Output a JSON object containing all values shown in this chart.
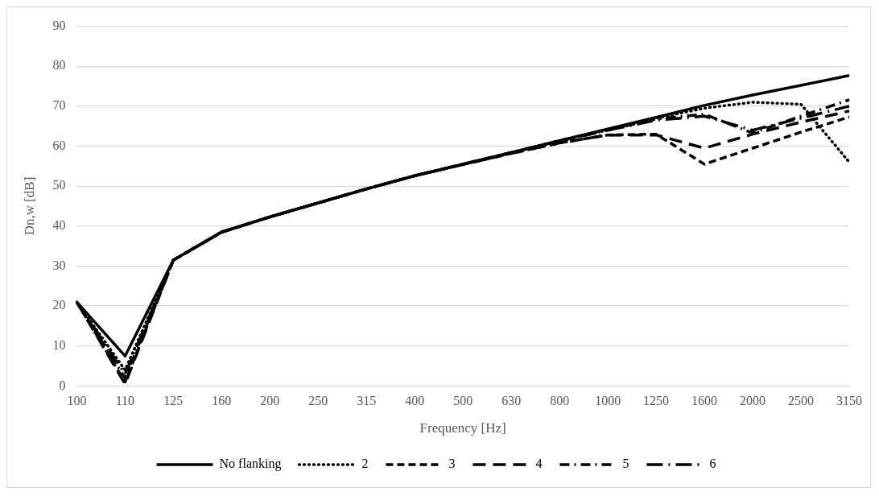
{
  "chart_data": {
    "type": "line",
    "xlabel": "Frequency [Hz]",
    "ylabel": "Dn,w [dB]",
    "categories": [
      "100",
      "110",
      "125",
      "160",
      "200",
      "250",
      "315",
      "400",
      "500",
      "630",
      "800",
      "1000",
      "1250",
      "1600",
      "2000",
      "2500",
      "3150"
    ],
    "ylim": [
      0,
      90
    ],
    "yticks": [
      0,
      10,
      20,
      30,
      40,
      50,
      60,
      70,
      80,
      90
    ],
    "grid": "y",
    "legend": "bottom",
    "marker": "none",
    "series": [
      {
        "name": "No flanking",
        "color": "#000000",
        "line_style": "solid",
        "values": [
          21,
          7.5,
          31.5,
          38.5,
          42.3,
          45.8,
          49.3,
          52.6,
          55.5,
          58.4,
          61.4,
          64.3,
          67.2,
          70.2,
          72.8,
          75.2,
          77.7
        ]
      },
      {
        "name": "2",
        "color": "#000000",
        "line_style": "dotted",
        "values": [
          21,
          4,
          31.5,
          38.5,
          42.3,
          45.8,
          49.3,
          52.6,
          55.5,
          58.4,
          61.4,
          64.2,
          67,
          69.5,
          71,
          70.5,
          56
        ]
      },
      {
        "name": "3",
        "color": "#000000",
        "line_style": "dashed",
        "values": [
          21,
          1,
          31.5,
          38.5,
          42.3,
          45.8,
          49.3,
          52.6,
          55.4,
          58.2,
          60.8,
          62.8,
          63,
          55.5,
          59.5,
          63.5,
          67.3
        ]
      },
      {
        "name": "4",
        "color": "#000000",
        "line_style": "dashed",
        "values": [
          21,
          0.5,
          31.5,
          38.5,
          42.3,
          45.8,
          49.3,
          52.6,
          55.4,
          58.2,
          60.8,
          62.8,
          62.8,
          59.5,
          63,
          66,
          68.8
        ]
      },
      {
        "name": "5",
        "color": "#000000",
        "line_style": "dashed",
        "values": [
          21,
          2,
          31.5,
          38.5,
          42.3,
          45.8,
          49.3,
          52.6,
          55.5,
          58.4,
          61.3,
          64,
          66.8,
          68,
          63.3,
          67.5,
          71.6
        ]
      },
      {
        "name": "6",
        "color": "#000000",
        "line_style": "dashed",
        "values": [
          21,
          3,
          31.5,
          38.5,
          42.3,
          45.8,
          49.3,
          52.6,
          55.5,
          58.4,
          61.3,
          64,
          66.5,
          67.5,
          64,
          67,
          70
        ]
      }
    ]
  }
}
